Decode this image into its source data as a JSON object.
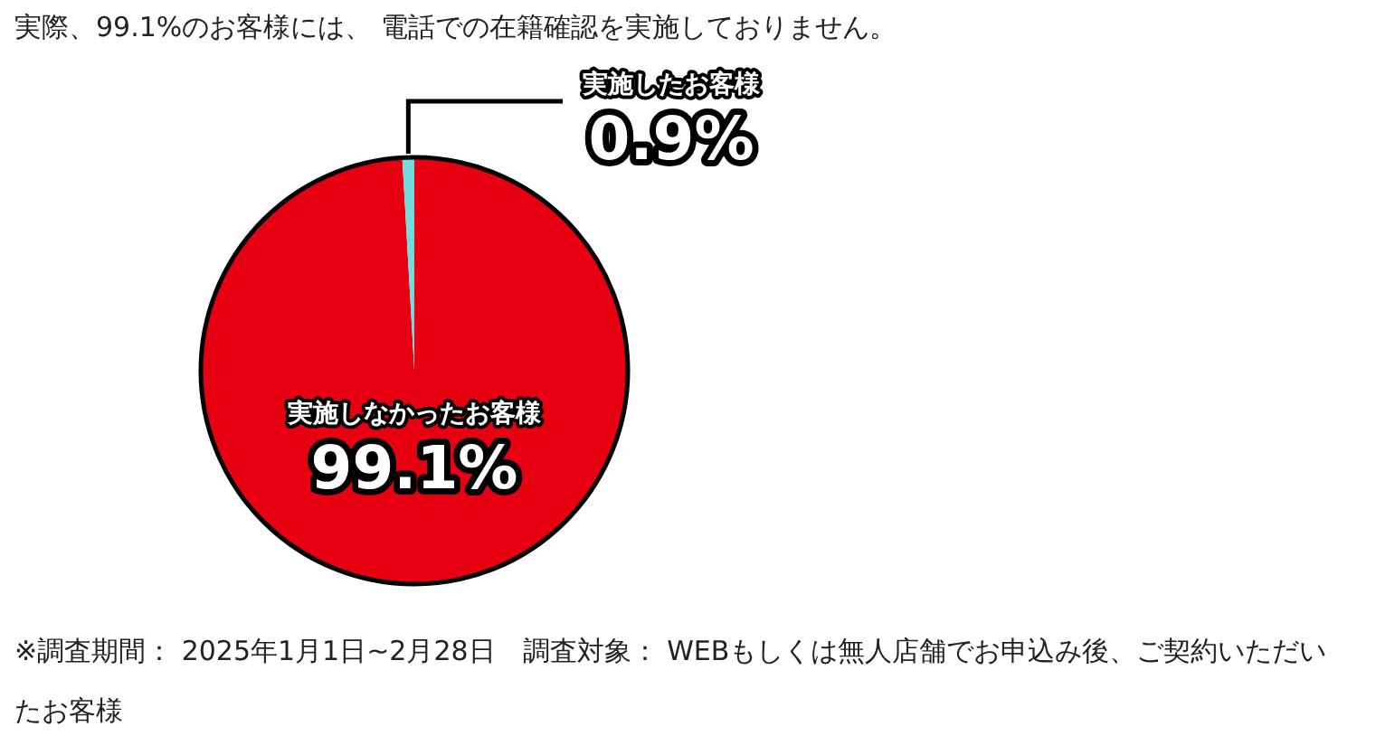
{
  "chart_data": {
    "type": "pie",
    "title": "実際、99.1%のお客様には、 電話での在籍確認を実施しておりません。",
    "categories": [
      "実施しなかったお客様",
      "実施したお客様"
    ],
    "values": [
      99.1,
      0.9
    ],
    "colors": [
      "#e60012",
      "#72dbdb"
    ],
    "value_labels": [
      "99.1%",
      "0.9%"
    ],
    "annotations": [
      "※調査期間： 2025年1月1日~2月28日　調査対象： WEBもしくは無人店舗でお申込み後、ご契約いただいたお客様"
    ]
  }
}
